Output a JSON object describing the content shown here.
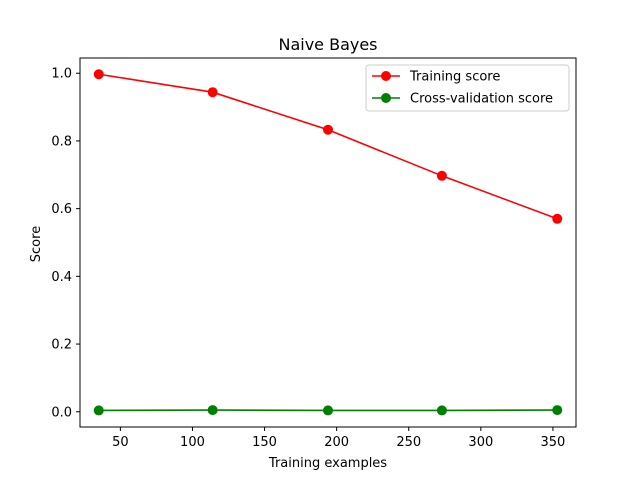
{
  "chart_data": {
    "type": "line",
    "title": "Naive Bayes",
    "xlabel": "Training examples",
    "ylabel": "Score",
    "x": [
      35,
      114,
      194,
      273,
      353
    ],
    "xlim": [
      22,
      366
    ],
    "ylim": [
      -0.045,
      1.045
    ],
    "xticks": [
      50,
      100,
      150,
      200,
      250,
      300,
      350
    ],
    "yticks": [
      0.0,
      0.2,
      0.4,
      0.6,
      0.8,
      1.0
    ],
    "xtick_labels": [
      "50",
      "100",
      "150",
      "200",
      "250",
      "300",
      "350"
    ],
    "ytick_labels": [
      "0.0",
      "0.2",
      "0.4",
      "0.6",
      "0.8",
      "1.0"
    ],
    "grid": false,
    "legend_position": "top-right",
    "series": [
      {
        "name": "Training score",
        "color": "#ff0000",
        "marker": "circle",
        "values": [
          0.997,
          0.944,
          0.833,
          0.697,
          0.57
        ]
      },
      {
        "name": "Cross-validation score",
        "color": "#008000",
        "marker": "circle",
        "values": [
          0.004,
          0.005,
          0.004,
          0.004,
          0.005
        ]
      }
    ]
  }
}
